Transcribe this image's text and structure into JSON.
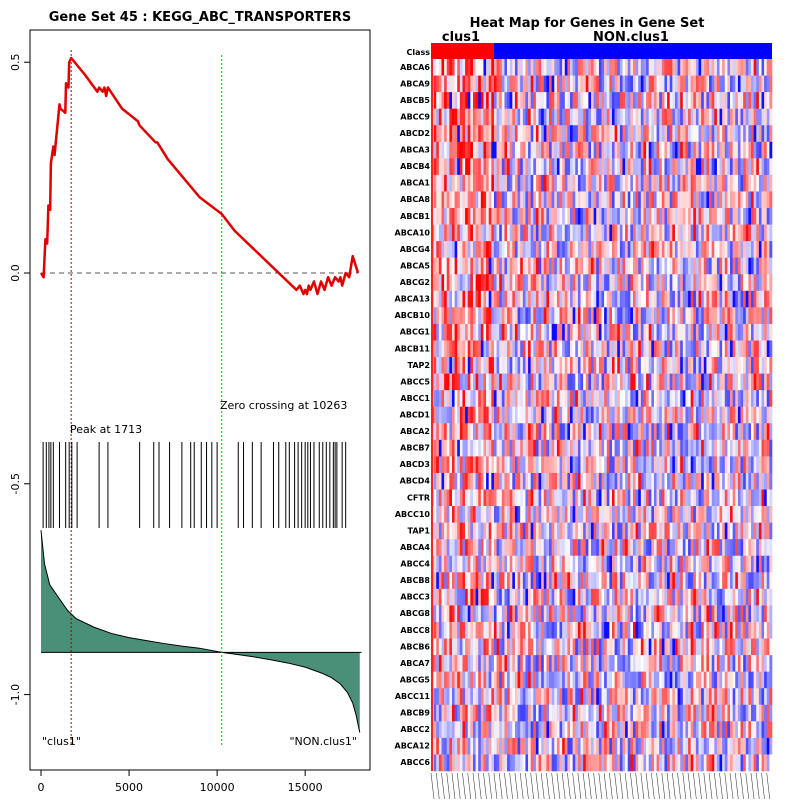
{
  "chart_data": [
    {
      "type": "line",
      "title": "Gene Set  45 : KEGG_ABC_TRANSPORTERS",
      "xlim": [
        0,
        18200
      ],
      "ylim": [
        -1.1,
        0.58
      ],
      "x_ticks": [
        0,
        5000,
        10000,
        15000
      ],
      "x_tick_labels": [
        "0",
        "5000",
        "10000",
        "15000"
      ],
      "y_ticks": [
        0.5,
        0.0,
        -0.5,
        -1.0
      ],
      "y_tick_labels": [
        "0.5",
        "0.0",
        "-0.5",
        "-1.0"
      ],
      "peak_position": 1713,
      "zero_crossing": 10263,
      "peak_label": "Peak at 1713",
      "zero_crossing_label": "Zero crossing at 10263",
      "left_group_label": "\"clus1\"",
      "right_group_label": "\"NON.clus1\"",
      "running_es": {
        "x": [
          0,
          150,
          250,
          350,
          420,
          520,
          560,
          700,
          770,
          1050,
          1100,
          1380,
          1420,
          1560,
          1600,
          1713,
          2500,
          3200,
          3300,
          3500,
          3600,
          3700,
          3800,
          4600,
          5500,
          5600,
          6500,
          6600,
          7200,
          8000,
          9000,
          10263,
          11000,
          12000,
          13000,
          14000,
          14500,
          14700,
          14900,
          15000,
          15100,
          15200,
          15300,
          15500,
          15700,
          15900,
          16100,
          16300,
          16500,
          16700,
          16900,
          17000,
          17100,
          17300,
          17500,
          17700,
          18000
        ],
        "y": [
          0.0,
          -0.01,
          0.08,
          0.07,
          0.16,
          0.15,
          0.26,
          0.3,
          0.28,
          0.4,
          0.39,
          0.38,
          0.45,
          0.44,
          0.5,
          0.51,
          0.47,
          0.43,
          0.44,
          0.43,
          0.44,
          0.42,
          0.44,
          0.39,
          0.36,
          0.35,
          0.31,
          0.31,
          0.27,
          0.23,
          0.18,
          0.14,
          0.1,
          0.06,
          0.02,
          -0.02,
          -0.04,
          -0.03,
          -0.05,
          -0.04,
          -0.05,
          -0.03,
          -0.04,
          -0.02,
          -0.05,
          -0.02,
          -0.04,
          -0.01,
          -0.03,
          -0.01,
          -0.02,
          -0.01,
          -0.03,
          0.0,
          -0.01,
          0.04,
          0.0
        ]
      },
      "hit_positions": [
        120,
        300,
        450,
        560,
        700,
        1050,
        1400,
        1600,
        1750,
        2050,
        3300,
        3800,
        5600,
        6400,
        6700,
        7300,
        8000,
        8500,
        8700,
        9100,
        9400,
        9700,
        10000,
        11200,
        11500,
        12000,
        12500,
        13200,
        13500,
        13900,
        14100,
        14400,
        14600,
        14800,
        15000,
        15150,
        15300,
        15500,
        15800,
        16000,
        16200,
        16400,
        16600,
        16700,
        16800,
        17100,
        17300
      ],
      "ranked_metric": {
        "x": [
          0,
          200,
          500,
          1000,
          1500,
          2000,
          3000,
          4000,
          5000,
          6000,
          7000,
          8000,
          9000,
          10263,
          11000,
          12000,
          13000,
          14000,
          15000,
          16000,
          16500,
          17000,
          17400,
          17700,
          17900,
          18100
        ],
        "y": [
          -0.61,
          -0.69,
          -0.74,
          -0.77,
          -0.8,
          -0.82,
          -0.84,
          -0.855,
          -0.865,
          -0.872,
          -0.879,
          -0.885,
          -0.89,
          -0.9,
          -0.904,
          -0.91,
          -0.917,
          -0.925,
          -0.935,
          -0.95,
          -0.96,
          -0.975,
          -0.995,
          -1.02,
          -1.05,
          -1.09
        ]
      }
    },
    {
      "type": "heatmap",
      "title": "Heat Map for Genes in Gene Set",
      "class_row_label": "Class",
      "class_groups": [
        "clus1",
        "NON.clus1"
      ],
      "class_colors": [
        "#ff0000",
        "#0000ff"
      ],
      "rows": [
        "ABCA6",
        "ABCA9",
        "ABCB5",
        "ABCC9",
        "ABCD2",
        "ABCA3",
        "ABCB4",
        "ABCA1",
        "ABCA8",
        "ABCB1",
        "ABCA10",
        "ABCG4",
        "ABCA5",
        "ABCG2",
        "ABCA13",
        "ABCB10",
        "ABCG1",
        "ABCB11",
        "TAP2",
        "ABCC5",
        "ABCC1",
        "ABCD1",
        "ABCA2",
        "ABCB7",
        "ABCD3",
        "ABCD4",
        "CFTR",
        "ABCC10",
        "TAP1",
        "ABCA4",
        "ABCC4",
        "ABCB8",
        "ABCC3",
        "ABCG8",
        "ABCC8",
        "ABCB6",
        "ABCA7",
        "ABCG5",
        "ABCC11",
        "ABCB9",
        "ABCC2",
        "ABCA12",
        "ABCC6"
      ],
      "color_scale": [
        "#0000ff",
        "#ffffff",
        "#ff0000"
      ]
    }
  ]
}
